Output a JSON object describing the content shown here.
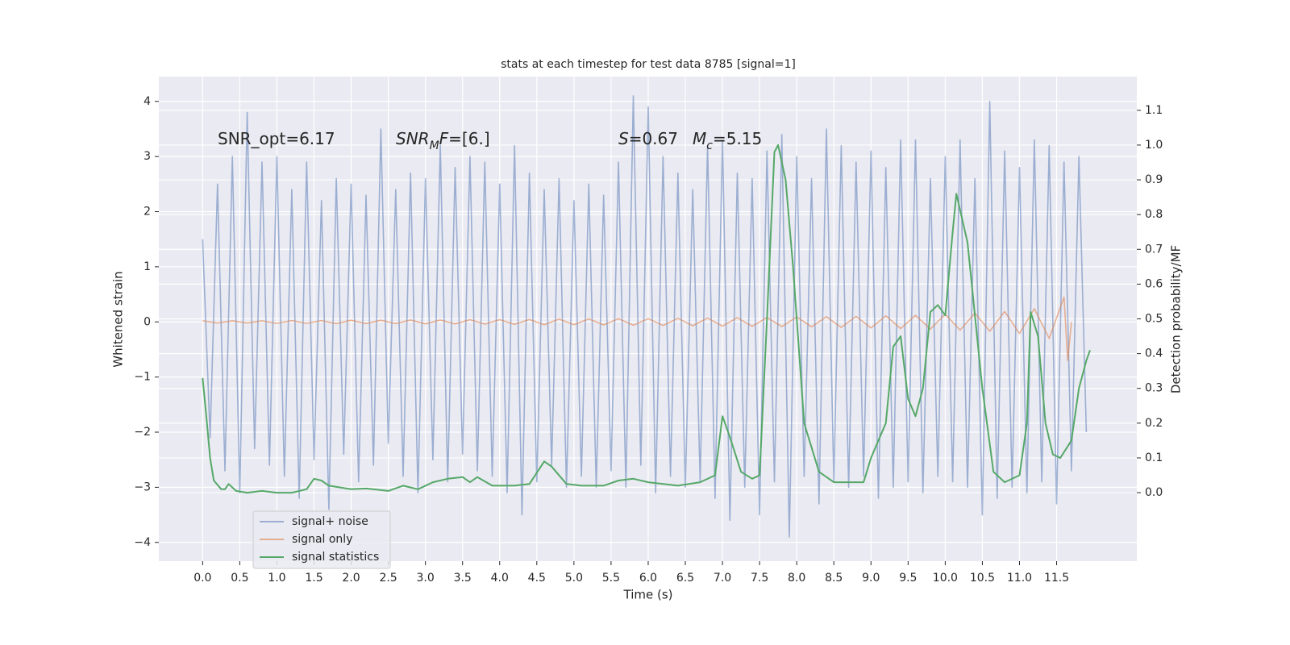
{
  "chart_data": {
    "type": "line",
    "title": "stats at each timestep for test data 8785 [signal=1]",
    "xlabel": "Time (s)",
    "ylabel": "Whitened strain",
    "y2label": "Detection probability/MF",
    "xlim": [
      -0.59,
      12.58
    ],
    "ylim": [
      -4.34,
      4.45
    ],
    "y2lim": [
      -0.197,
      1.197
    ],
    "grid": true,
    "legend": "lower left",
    "xticks": [
      {
        "value": 0,
        "label": "0.0"
      },
      0.5,
      {
        "value": 1,
        "label": "1.0"
      },
      1.5,
      {
        "value": 2,
        "label": "2.0"
      },
      2.5,
      {
        "value": 3,
        "label": "3.0"
      },
      3.5,
      {
        "value": 4,
        "label": "4.0"
      },
      4.5,
      {
        "value": 5,
        "label": "5.0"
      },
      5.5,
      {
        "value": 6,
        "label": "6.0"
      },
      6.5,
      {
        "value": 7,
        "label": "7.0"
      },
      7.5,
      {
        "value": 8,
        "label": "8.0"
      },
      8.5,
      {
        "value": 9,
        "label": "9.0"
      },
      9.5,
      {
        "value": 10,
        "label": "10.0"
      },
      10.5,
      {
        "value": 11,
        "label": "11.0"
      },
      11.5
    ],
    "yticks": [
      {
        "value": -4,
        "label": "−4"
      },
      {
        "value": -3,
        "label": "−3"
      },
      {
        "value": -2,
        "label": "−2"
      },
      {
        "value": -1,
        "label": "−1"
      },
      0,
      1,
      2,
      3,
      4
    ],
    "y2ticks": [
      {
        "value": 0,
        "label": "0.0"
      },
      0.1,
      0.2,
      0.3,
      0.4,
      0.5,
      0.6,
      0.7,
      0.8,
      0.9,
      {
        "value": 1,
        "label": "1.0"
      },
      1.1
    ],
    "annotations": [
      [
        {
          "text": "SNR_opt=6.17"
        }
      ],
      [
        {
          "text": "SNR",
          "style": "italic"
        },
        {
          "text": "M",
          "style": "italic-sub"
        },
        {
          "text": "F",
          "style": "italic"
        },
        {
          "text": "=[6.]"
        }
      ],
      [
        {
          "text": "S",
          "style": "italic"
        },
        {
          "text": "=0.67"
        }
      ],
      [
        {
          "text": "M",
          "style": "italic"
        },
        {
          "text": "c",
          "style": "italic-sub"
        },
        {
          "text": "=5.15"
        }
      ]
    ],
    "series": [
      {
        "name": "signal+ noise",
        "color": "#4c72b0",
        "opacity": 0.5,
        "x": [
          0.0,
          0.1,
          0.2,
          0.3,
          0.4,
          0.5,
          0.6,
          0.7,
          0.8,
          0.9,
          1.0,
          1.1,
          1.2,
          1.3,
          1.4,
          1.5,
          1.6,
          1.7,
          1.8,
          1.9,
          2.0,
          2.1,
          2.2,
          2.3,
          2.4,
          2.5,
          2.6,
          2.7,
          2.8,
          2.9,
          3.0,
          3.1,
          3.2,
          3.3,
          3.4,
          3.5,
          3.6,
          3.7,
          3.8,
          3.9,
          4.0,
          4.1,
          4.2,
          4.3,
          4.4,
          4.5,
          4.6,
          4.7,
          4.8,
          4.9,
          5.0,
          5.1,
          5.2,
          5.3,
          5.4,
          5.5,
          5.6,
          5.7,
          5.8,
          5.9,
          6.0,
          6.1,
          6.2,
          6.3,
          6.4,
          6.5,
          6.6,
          6.7,
          6.8,
          6.9,
          7.0,
          7.1,
          7.2,
          7.3,
          7.4,
          7.5,
          7.6,
          7.7,
          7.8,
          7.9,
          8.0,
          8.1,
          8.2,
          8.3,
          8.4,
          8.5,
          8.6,
          8.7,
          8.8,
          8.9,
          9.0,
          9.1,
          9.2,
          9.3,
          9.4,
          9.5,
          9.6,
          9.7,
          9.8,
          9.9,
          10.0,
          10.1,
          10.2,
          10.3,
          10.4,
          10.5,
          10.6,
          10.7,
          10.8,
          10.9,
          11.0,
          11.1,
          11.2,
          11.3,
          11.4,
          11.5,
          11.6,
          11.7,
          11.8,
          11.9
        ],
        "values": [
          1.5,
          -2.1,
          2.5,
          -2.7,
          3.0,
          -3.1,
          3.8,
          -2.3,
          2.9,
          -2.6,
          3.0,
          -2.8,
          2.4,
          -3.2,
          2.9,
          -2.5,
          2.2,
          -3.4,
          2.6,
          -2.4,
          2.5,
          -2.9,
          2.3,
          -2.6,
          3.5,
          -2.2,
          2.4,
          -2.8,
          2.7,
          -3.1,
          2.6,
          -2.5,
          3.2,
          -2.9,
          2.8,
          -2.4,
          3.0,
          -2.7,
          2.9,
          -2.8,
          2.5,
          -3.1,
          3.2,
          -3.5,
          2.7,
          -2.9,
          2.4,
          -2.6,
          2.6,
          -3.0,
          2.2,
          -2.8,
          2.5,
          -3.0,
          2.3,
          -2.7,
          2.9,
          -3.0,
          4.1,
          -2.6,
          3.9,
          -3.1,
          3.0,
          -2.8,
          2.7,
          -3.0,
          2.4,
          -2.9,
          3.2,
          -3.2,
          3.3,
          -3.6,
          2.7,
          -3.0,
          2.6,
          -3.5,
          3.1,
          -2.9,
          3.4,
          -3.9,
          3.0,
          -2.8,
          2.6,
          -3.3,
          3.5,
          -2.9,
          3.2,
          -3.0,
          2.9,
          -2.8,
          3.1,
          -3.2,
          2.8,
          -3.0,
          3.3,
          -2.9,
          3.3,
          -3.1,
          2.6,
          -2.8,
          3.0,
          -2.9,
          3.3,
          -3.0,
          2.6,
          -3.5,
          4.0,
          -3.2,
          3.1,
          -3.0,
          2.8,
          -3.1,
          3.3,
          -2.9,
          3.2,
          -3.3,
          2.9,
          -2.7,
          3.0,
          -2.0
        ]
      },
      {
        "name": "signal only",
        "color": "#dd8452",
        "opacity": 0.6,
        "x": [
          0.0,
          0.2,
          0.4,
          0.6,
          0.8,
          1.0,
          1.2,
          1.4,
          1.6,
          1.8,
          2.0,
          2.2,
          2.4,
          2.6,
          2.8,
          3.0,
          3.2,
          3.4,
          3.6,
          3.8,
          4.0,
          4.2,
          4.4,
          4.6,
          4.8,
          5.0,
          5.2,
          5.4,
          5.6,
          5.8,
          6.0,
          6.2,
          6.4,
          6.6,
          6.8,
          7.0,
          7.2,
          7.4,
          7.6,
          7.8,
          8.0,
          8.2,
          8.4,
          8.6,
          8.8,
          9.0,
          9.2,
          9.4,
          9.6,
          9.8,
          10.0,
          10.2,
          10.4,
          10.6,
          10.8,
          11.0,
          11.2,
          11.4,
          11.6,
          11.65,
          11.7
        ],
        "values": [
          0.02,
          -0.02,
          0.02,
          -0.02,
          0.02,
          -0.025,
          0.025,
          -0.025,
          0.025,
          -0.03,
          0.03,
          -0.03,
          0.03,
          -0.03,
          0.035,
          -0.035,
          0.035,
          -0.035,
          0.04,
          -0.04,
          0.04,
          -0.045,
          0.045,
          -0.05,
          0.05,
          -0.05,
          0.055,
          -0.055,
          0.06,
          -0.06,
          0.06,
          -0.065,
          0.065,
          -0.07,
          0.07,
          -0.075,
          0.075,
          -0.08,
          0.08,
          -0.085,
          0.09,
          -0.09,
          0.095,
          -0.1,
          0.1,
          -0.11,
          0.11,
          -0.12,
          0.12,
          -0.13,
          0.14,
          -0.15,
          0.16,
          -0.17,
          0.19,
          -0.21,
          0.24,
          -0.3,
          0.45,
          -0.7,
          0.0
        ]
      },
      {
        "name": "signal statistics",
        "color": "#55a868",
        "axis": "y2",
        "x": [
          0,
          0.05,
          0.1,
          0.15,
          0.25,
          0.3,
          0.35,
          0.45,
          0.6,
          0.8,
          1.0,
          1.2,
          1.4,
          1.5,
          1.6,
          1.7,
          2.0,
          2.2,
          2.5,
          2.7,
          2.9,
          3.1,
          3.3,
          3.5,
          3.6,
          3.7,
          3.9,
          4.2,
          4.4,
          4.6,
          4.7,
          4.9,
          5.1,
          5.4,
          5.6,
          5.8,
          6.0,
          6.4,
          6.7,
          6.9,
          7.0,
          7.1,
          7.25,
          7.4,
          7.5,
          7.6,
          7.7,
          7.75,
          7.85,
          7.95,
          8.1,
          8.3,
          8.5,
          8.7,
          8.9,
          9.0,
          9.2,
          9.3,
          9.4,
          9.5,
          9.6,
          9.7,
          9.8,
          9.9,
          10.0,
          10.1,
          10.15,
          10.3,
          10.5,
          10.65,
          10.8,
          11.0,
          11.1,
          11.15,
          11.25,
          11.35,
          11.45,
          11.55,
          11.7,
          11.8,
          11.9,
          11.95
        ],
        "values": [
          0.33,
          0.22,
          0.1,
          0.035,
          0.01,
          0.01,
          0.025,
          0.005,
          0.0,
          0.005,
          0.0,
          0.0,
          0.01,
          0.04,
          0.035,
          0.02,
          0.01,
          0.012,
          0.005,
          0.02,
          0.01,
          0.03,
          0.04,
          0.045,
          0.03,
          0.045,
          0.02,
          0.02,
          0.025,
          0.09,
          0.075,
          0.025,
          0.02,
          0.02,
          0.035,
          0.04,
          0.03,
          0.02,
          0.03,
          0.05,
          0.22,
          0.16,
          0.06,
          0.04,
          0.05,
          0.5,
          0.98,
          1.0,
          0.9,
          0.65,
          0.2,
          0.06,
          0.03,
          0.03,
          0.03,
          0.1,
          0.2,
          0.42,
          0.45,
          0.27,
          0.22,
          0.3,
          0.52,
          0.54,
          0.51,
          0.75,
          0.86,
          0.72,
          0.3,
          0.06,
          0.03,
          0.05,
          0.2,
          0.52,
          0.45,
          0.2,
          0.11,
          0.1,
          0.15,
          0.3,
          0.38,
          0.41
        ]
      }
    ]
  }
}
